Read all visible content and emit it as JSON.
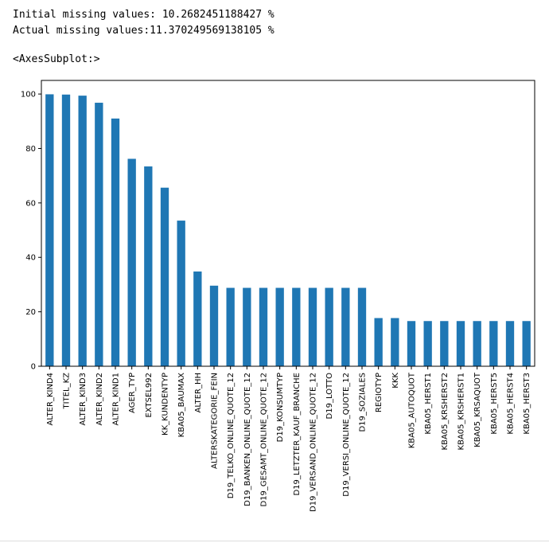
{
  "output": {
    "line1": "Initial missing values: 10.2682451188427 %",
    "line2": "Actual missing values:11.370249569138105 %",
    "repr": "<AxesSubplot:>"
  },
  "chart_data": {
    "type": "bar",
    "title": "",
    "xlabel": "",
    "ylabel": "",
    "ylim": [
      0,
      105
    ],
    "yticks": [
      0,
      20,
      40,
      60,
      80,
      100
    ],
    "grid": false,
    "bar_color": "#1f77b4",
    "categories": [
      "ALTER_KIND4",
      "TITEL_KZ",
      "ALTER_KIND3",
      "ALTER_KIND2",
      "ALTER_KIND1",
      "AGER_TYP",
      "EXTSEL992",
      "KK_KUNDENTYP",
      "KBA05_BAUMAX",
      "ALTER_HH",
      "ALTERSKATEGORIE_FEIN",
      "D19_TELKO_ONLINE_QUOTE_12",
      "D19_BANKEN_ONLINE_QUOTE_12",
      "D19_GESAMT_ONLINE_QUOTE_12",
      "D19_KONSUMTYP",
      "D19_LETZTER_KAUF_BRANCHE",
      "D19_VERSAND_ONLINE_QUOTE_12",
      "D19_LOTTO",
      "D19_VERSI_ONLINE_QUOTE_12",
      "D19_SOZIALES",
      "REGIOTYP",
      "KKK",
      "KBA05_AUTOQUOT",
      "KBA05_HERST1",
      "KBA05_KRSHERST2",
      "KBA05_KRSHERST1",
      "KBA05_KRSAQUOT",
      "KBA05_HERST5",
      "KBA05_HERST4",
      "KBA05_HERST3"
    ],
    "values": [
      99.9,
      99.8,
      99.4,
      96.8,
      91.0,
      76.2,
      73.4,
      65.6,
      53.5,
      34.8,
      29.6,
      28.8,
      28.8,
      28.8,
      28.8,
      28.8,
      28.8,
      28.8,
      28.8,
      28.8,
      17.7,
      17.7,
      16.6,
      16.6,
      16.6,
      16.6,
      16.6,
      16.6,
      16.6,
      16.6
    ]
  }
}
